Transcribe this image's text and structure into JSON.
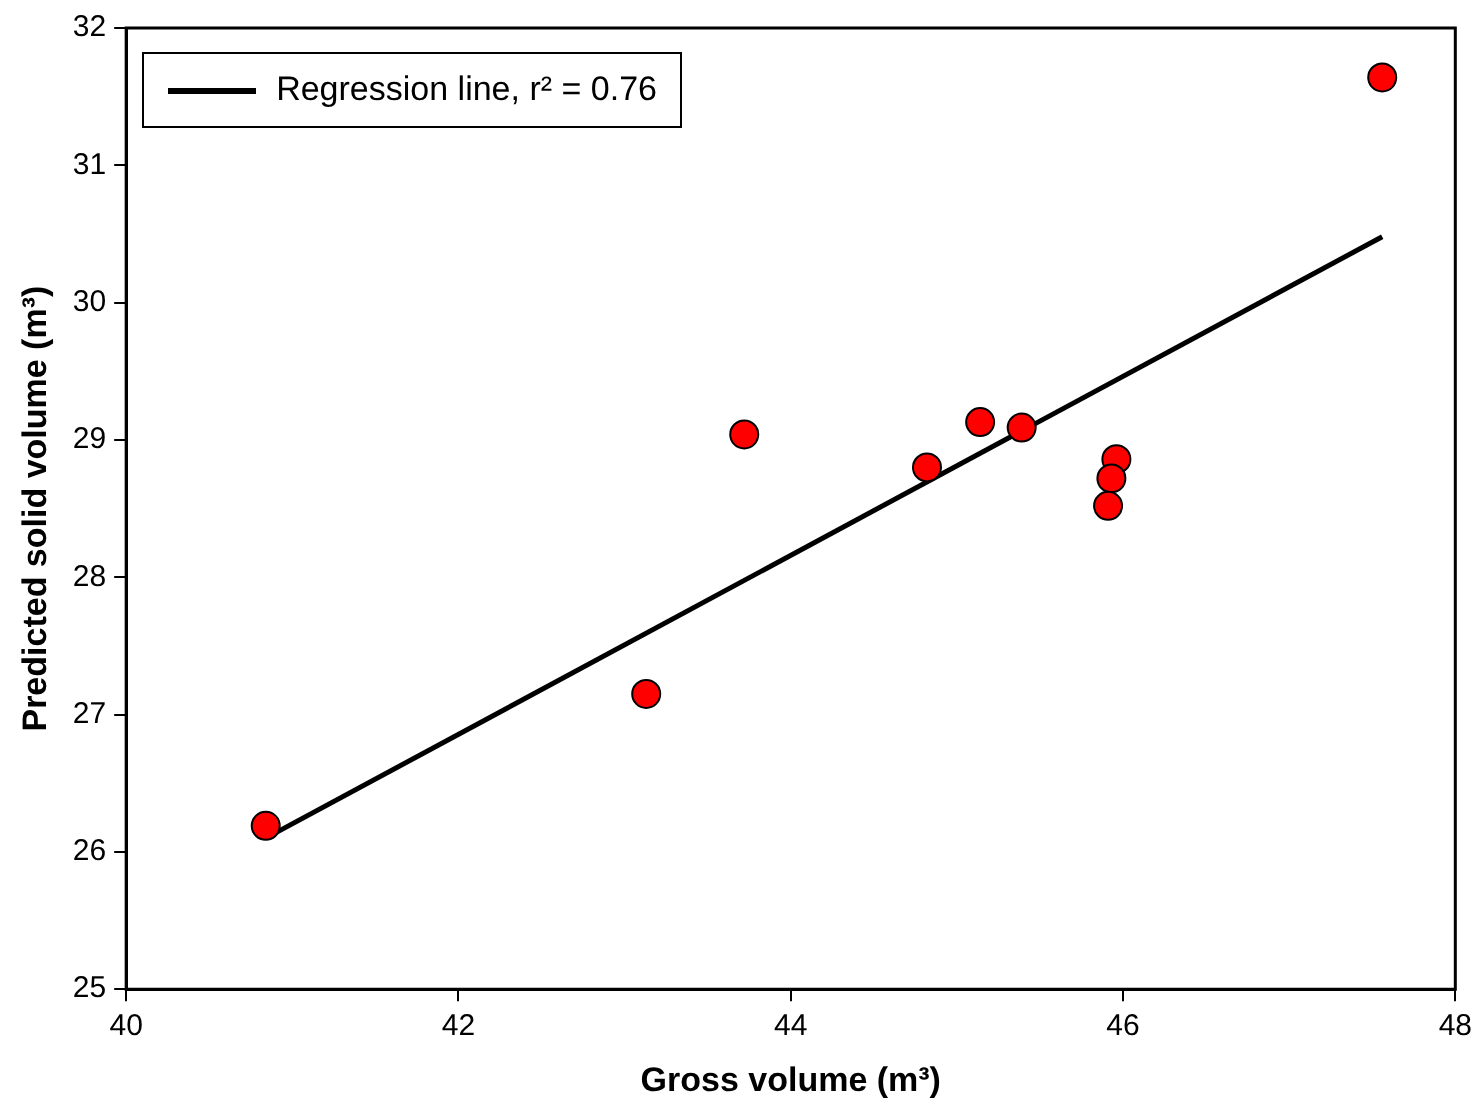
{
  "chart_data": {
    "type": "scatter",
    "xlabel": "Gross volume (m³)",
    "ylabel": "Predicted solid volume (m³)",
    "xlim": [
      40,
      48
    ],
    "xticks": [
      40,
      42,
      44,
      46,
      48
    ],
    "ylim": [
      25,
      32
    ],
    "yticks": [
      25,
      26,
      27,
      28,
      29,
      30,
      31,
      32
    ],
    "grid": false,
    "legend": "top left",
    "marker": "circle",
    "series": [
      {
        "color": "#ff0000",
        "x": [
          40.84,
          43.13,
          43.72,
          44.82,
          45.14,
          45.39,
          45.96,
          45.93,
          45.91,
          47.56
        ],
        "values": [
          26.19,
          27.15,
          29.04,
          28.8,
          29.13,
          29.09,
          28.86,
          28.72,
          28.52,
          31.64
        ]
      },
      {
        "type": "line",
        "name": "Regression line, r² = 0.76",
        "color": "#000000",
        "x": [
          40.84,
          47.56
        ],
        "values": [
          26.1,
          30.48
        ],
        "marker": "none",
        "line_style": "solid"
      }
    ]
  }
}
